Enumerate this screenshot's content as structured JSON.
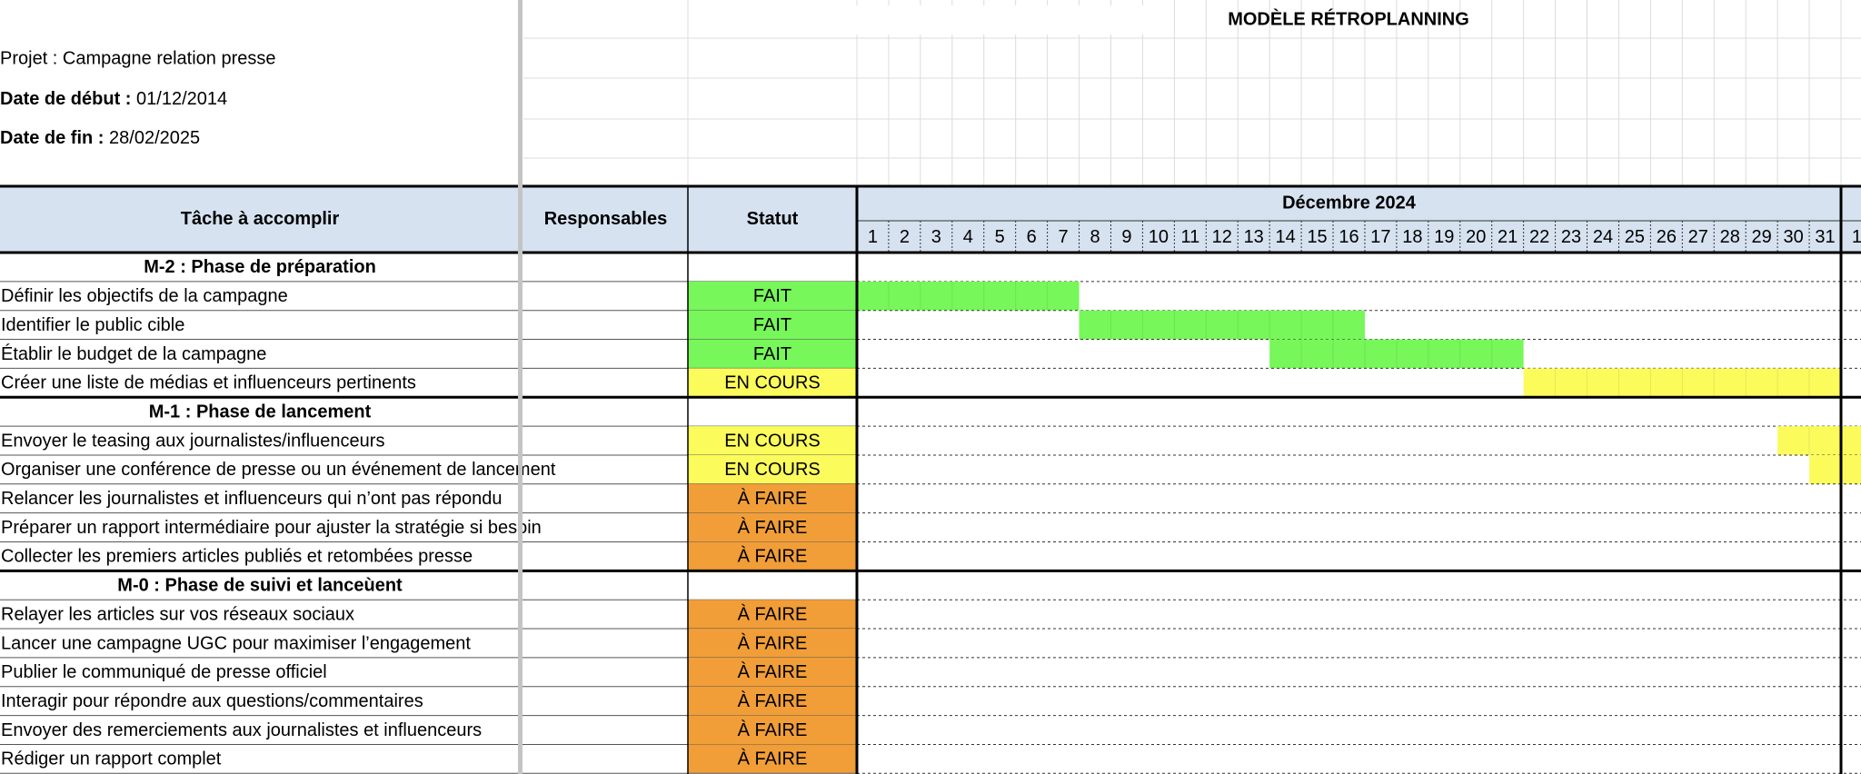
{
  "title": "MODÈLE RÉTROPLANNING",
  "project": "Projet : Campagne relation presse",
  "start_date": {
    "label": "Date de début :",
    "value": "01/12/2014"
  },
  "end_date": {
    "label": "Date de fin :",
    "value": "28/02/2025"
  },
  "table": {
    "headers": [
      "Tâche à accomplir",
      "Responsables",
      "Statut"
    ],
    "month": "Décembre 2024",
    "days": [
      1,
      2,
      3,
      4,
      5,
      6,
      7,
      8,
      9,
      10,
      11,
      12,
      13,
      14,
      15,
      16,
      17,
      18,
      19,
      20,
      21,
      22,
      23,
      24,
      25,
      26,
      27,
      28,
      29,
      30,
      31,
      1
    ],
    "rows": [
      {
        "phase": "M-2 : Phase de préparation"
      },
      {
        "task": "Définir les objectifs de la campagne",
        "status": "FAIT",
        "color": "#77f75a",
        "start": 1,
        "end": 7
      },
      {
        "task": "Identifier le public cible",
        "status": "FAIT",
        "color": "#77f75a",
        "start": 8,
        "end": 16
      },
      {
        "task": "Établir le budget de la campagne",
        "status": "FAIT",
        "color": "#77f75a",
        "start": 14,
        "end": 21
      },
      {
        "task": "Créer une liste de médias et influenceurs pertinents",
        "status": "EN COURS",
        "color": "#fbfb5c",
        "start": 22,
        "end": 31
      },
      {
        "phase": "M-1 : Phase de lancement"
      },
      {
        "task": "Envoyer le teasing aux journalistes/influenceurs",
        "status": "EN COURS",
        "color": "#fbfb5c",
        "start": 30,
        "end": 32
      },
      {
        "task": "Organiser une conférence de presse ou un événement de lancement",
        "status": "EN COURS",
        "color": "#fbfb5c",
        "start": 31,
        "end": 32
      },
      {
        "task": "Relancer les journalistes et influenceurs qui n’ont pas répondu",
        "status": "À FAIRE",
        "color": "#f19e38"
      },
      {
        "task": "Préparer un rapport intermédiaire pour ajuster la stratégie si besoin",
        "status": "À FAIRE",
        "color": "#f19e38"
      },
      {
        "task": "Collecter les premiers articles publiés et retombées presse",
        "status": "À FAIRE",
        "color": "#f19e38"
      },
      {
        "phase": "M-0 : Phase de suivi et lanceùent"
      },
      {
        "task": "Relayer les articles sur vos réseaux sociaux",
        "status": "À FAIRE",
        "color": "#f19e38"
      },
      {
        "task": "Lancer une campagne UGC pour maximiser l’engagement",
        "status": "À FAIRE",
        "color": "#f19e38"
      },
      {
        "task": "Publier le communiqué de presse officiel",
        "status": "À FAIRE",
        "color": "#f19e38"
      },
      {
        "task": "Interagir pour répondre aux questions/commentaires",
        "status": "À FAIRE",
        "color": "#f19e38"
      },
      {
        "task": "Envoyer des remerciements aux journalistes et influenceurs",
        "status": "À FAIRE",
        "color": "#f19e38"
      },
      {
        "task": "Rédiger un rapport complet",
        "status": "À FAIRE",
        "color": "#f19e38"
      }
    ]
  }
}
